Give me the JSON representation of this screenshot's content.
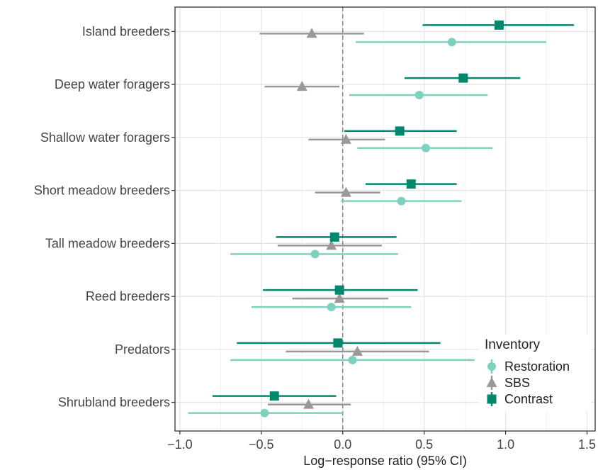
{
  "chart_data": {
    "type": "forest",
    "xlabel": "Log−response ratio (95% CI)",
    "xlim": [
      -1.03,
      1.55
    ],
    "xticks": [
      -1.0,
      -0.5,
      0.0,
      0.5,
      1.0,
      1.5
    ],
    "xtick_labels": [
      "−1.0",
      "−0.5",
      "0.0",
      "0.5",
      "1.0",
      "1.5"
    ],
    "reference_line": 0,
    "grid": true,
    "categories": [
      "Island breeders",
      "Deep water foragers",
      "Shallow water foragers",
      "Short meadow breeders",
      "Tall meadow breeders",
      "Reed breeders",
      "Predators",
      "Shrubland breeders"
    ],
    "legend": {
      "title": "Inventory",
      "position": "bottom-right"
    },
    "series": [
      {
        "name": "Contrast",
        "color": "#00876e",
        "marker": "square",
        "points": [
          {
            "est": 0.96,
            "lo": 0.49,
            "hi": 1.42
          },
          {
            "est": 0.74,
            "lo": 0.38,
            "hi": 1.09
          },
          {
            "est": 0.35,
            "lo": 0.01,
            "hi": 0.7
          },
          {
            "est": 0.42,
            "lo": 0.14,
            "hi": 0.7
          },
          {
            "est": -0.05,
            "lo": -0.41,
            "hi": 0.33
          },
          {
            "est": -0.02,
            "lo": -0.49,
            "hi": 0.46
          },
          {
            "est": -0.03,
            "lo": -0.65,
            "hi": 0.6
          },
          {
            "est": -0.42,
            "lo": -0.8,
            "hi": -0.04
          }
        ]
      },
      {
        "name": "SBS",
        "color": "#999999",
        "marker": "triangle",
        "points": [
          {
            "est": -0.19,
            "lo": -0.51,
            "hi": 0.13
          },
          {
            "est": -0.25,
            "lo": -0.48,
            "hi": -0.02
          },
          {
            "est": 0.02,
            "lo": -0.21,
            "hi": 0.26
          },
          {
            "est": 0.02,
            "lo": -0.17,
            "hi": 0.23
          },
          {
            "est": -0.07,
            "lo": -0.4,
            "hi": 0.24
          },
          {
            "est": -0.02,
            "lo": -0.31,
            "hi": 0.28
          },
          {
            "est": 0.09,
            "lo": -0.35,
            "hi": 0.53
          },
          {
            "est": -0.21,
            "lo": -0.46,
            "hi": 0.05
          }
        ]
      },
      {
        "name": "Restoration",
        "color": "#7fd1bf",
        "marker": "circle",
        "points": [
          {
            "est": 0.67,
            "lo": 0.08,
            "hi": 1.25
          },
          {
            "est": 0.47,
            "lo": 0.04,
            "hi": 0.89
          },
          {
            "est": 0.51,
            "lo": 0.09,
            "hi": 0.92
          },
          {
            "est": 0.36,
            "lo": -0.01,
            "hi": 0.73
          },
          {
            "est": -0.17,
            "lo": -0.69,
            "hi": 0.34
          },
          {
            "est": -0.07,
            "lo": -0.56,
            "hi": 0.42
          },
          {
            "est": 0.06,
            "lo": -0.69,
            "hi": 0.81
          },
          {
            "est": -0.48,
            "lo": -0.95,
            "hi": 0.0
          }
        ]
      }
    ],
    "legend_order": [
      "Restoration",
      "SBS",
      "Contrast"
    ]
  }
}
